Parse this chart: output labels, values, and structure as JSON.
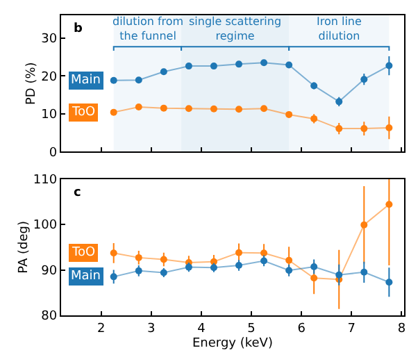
{
  "chart_data": [
    {
      "type": "line",
      "ylabel": "PD (%)",
      "x": [
        2.25,
        2.75,
        3.25,
        3.75,
        4.25,
        4.75,
        5.25,
        5.75,
        6.25,
        6.75,
        7.25,
        7.75
      ],
      "xlim": [
        1.2,
        8.05
      ],
      "xticks": [
        {
          "value": 2,
          "label": null
        },
        {
          "value": 3,
          "label": null
        },
        {
          "value": 4,
          "label": null
        },
        {
          "value": 5,
          "label": null
        },
        {
          "value": 6,
          "label": null
        },
        {
          "value": 7,
          "label": null
        },
        {
          "value": 8,
          "label": null
        }
      ],
      "ylim": [
        0,
        36
      ],
      "yticks": [
        0,
        10,
        20,
        30
      ],
      "tick_labels": "y",
      "marker": "circle",
      "line_style": "solid",
      "grid": false,
      "legend": "left",
      "series": [
        {
          "name": "Main",
          "color": "#1f77b4",
          "values": [
            18.8,
            18.9,
            21.1,
            22.6,
            22.6,
            23.1,
            23.5,
            22.9,
            17.4,
            13.2,
            19.1,
            22.7
          ],
          "errors": [
            0.5,
            0.5,
            0.5,
            0.5,
            0.5,
            0.5,
            0.5,
            0.6,
            0.9,
            1.2,
            1.5,
            2.5
          ]
        },
        {
          "name": "ToO",
          "color": "#ff7f0e",
          "values": [
            10.4,
            11.8,
            11.5,
            11.4,
            11.3,
            11.2,
            11.4,
            9.8,
            8.7,
            6.1,
            6.1,
            6.3
          ],
          "errors": [
            0.5,
            0.5,
            0.5,
            0.5,
            0.5,
            0.5,
            0.5,
            0.8,
            1.2,
            1.5,
            1.8,
            3.0
          ]
        }
      ],
      "annotations": [
        "b"
      ],
      "bands": [
        {
          "axis": "x",
          "from": 2.25,
          "to": 3.6,
          "label": "dilution from\nthe funnel",
          "color": "#1f77b4"
        },
        {
          "axis": "x",
          "from": 3.6,
          "to": 5.75,
          "label": "single scattering\nregime",
          "color": "#1f77b4"
        },
        {
          "axis": "x",
          "from": 5.75,
          "to": 7.75,
          "label": "Iron line\ndilution",
          "color": "#1f77b4"
        }
      ]
    },
    {
      "type": "line",
      "xlabel": "Energy (keV)",
      "ylabel": "PA (deg)",
      "x": [
        2.25,
        2.75,
        3.25,
        3.75,
        4.25,
        4.75,
        5.25,
        5.75,
        6.25,
        6.75,
        7.25,
        7.75
      ],
      "xlim": [
        1.2,
        8.05
      ],
      "xticks": [
        2,
        3,
        4,
        5,
        6,
        7,
        8
      ],
      "ylim": [
        80,
        110
      ],
      "yticks": [
        80,
        90,
        100,
        110
      ],
      "marker": "circle",
      "line_style": "solid",
      "grid": false,
      "legend": "left",
      "series": [
        {
          "name": "ToO",
          "color": "#ff7f0e",
          "values": [
            93.7,
            92.7,
            92.3,
            91.6,
            91.8,
            93.8,
            93.7,
            92.1,
            88.2,
            87.9,
            99.9,
            104.4
          ],
          "errors": [
            2.2,
            1.5,
            1.5,
            1.5,
            1.5,
            2.0,
            2.0,
            3.0,
            3.5,
            6.5,
            8.5,
            [
              91,
              110
            ]
          ]
        },
        {
          "name": "Main",
          "color": "#1f77b4",
          "values": [
            88.5,
            89.8,
            89.4,
            90.6,
            90.5,
            91.0,
            92.0,
            89.9,
            90.7,
            88.9,
            89.5,
            87.3
          ],
          "errors": [
            1.5,
            1.2,
            1.0,
            1.0,
            1.0,
            1.2,
            1.2,
            1.3,
            1.6,
            2.3,
            2.3,
            3.2
          ]
        }
      ],
      "annotations": [
        "c"
      ]
    }
  ]
}
